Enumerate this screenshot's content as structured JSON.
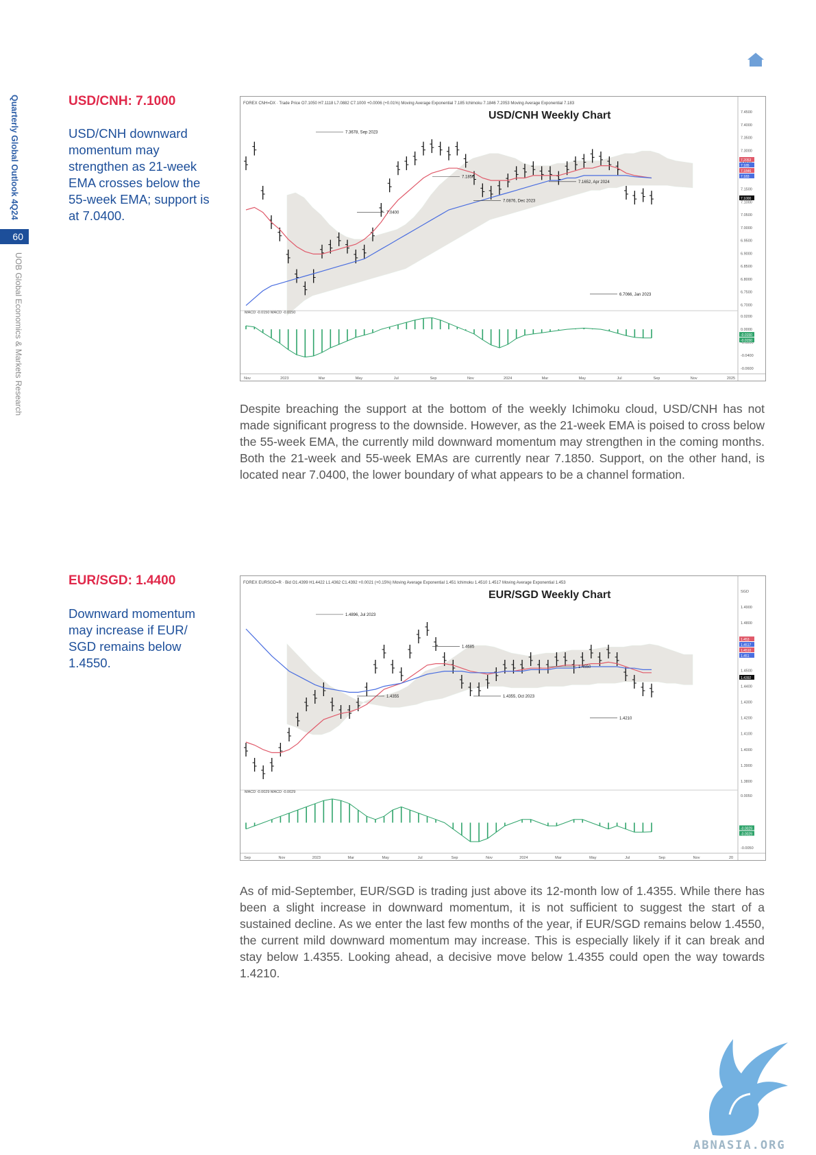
{
  "sidebar": {
    "report_title": "Quarterly Global Outlook 4Q24",
    "page_number": "60",
    "publisher": "UOB Global Economics & Markets Research"
  },
  "colors": {
    "brand_blue": "#1d4f9a",
    "title_red": "#e0284a",
    "ema21": "#e05a6a",
    "ema55": "#4a6ee0",
    "cloud_green": "#8fd1b0",
    "cloud_red": "#f2a8b0",
    "macd": "#2ea36a"
  },
  "icons": [
    "home-icon",
    "griffin-logo"
  ],
  "sections": [
    {
      "title": "USD/CNH: 7.1000",
      "summary": "USD/CNH downward momentum may strengthen as 21-week EMA crosses below the 55-week EMA; support is at 7.0400.",
      "body": "Despite breaching the support at the bottom of the weekly Ichimoku cloud, USD/CNH has not made significant progress to the downside. However, as the 21-week EMA is poised to cross below the 55-week EMA, the currently mild downward momentum may strengthen in the coming months. Both the 21-week and 55-week EMAs are currently near 7.1850. Support, on the other hand, is located near 7.0400, the lower boundary of what appears to be a channel formation."
    },
    {
      "title": "EUR/SGD: 1.4400",
      "summary": "Downward momentum may increase if EUR/ SGD remains below 1.4550.",
      "body": "As of mid-September, EUR/SGD is trading just above its 12-month low of 1.4355. While there has been a slight increase in downward momentum, it is not sufficient to suggest the start of a sustained decline. As we enter the last few months of the year, if EUR/SGD remains below 1.4550, the current mild downward momentum may increase. This is especially likely if it can break and stay below 1.4355. Looking ahead, a decisive move below 1.4355 could open the way towards 1.4210."
    }
  ],
  "chart_data": [
    {
      "type": "line",
      "title": "USD/CNH Weekly Chart",
      "header": "FOREX CNH=DX · Trade Price  O7.1050 H7.1118 L7.0882 C7.1000 +0.0006 (+0.01%)   Moving Average Exponential 7.185  Ichimoku 7.1846 7.2053  Moving Average Exponential 7.183",
      "ylim": [
        6.65,
        7.45
      ],
      "y_ticks": [
        "7.4500",
        "7.4000",
        "7.3500",
        "7.3000",
        "7.2500",
        "7.2000",
        "7.1500",
        "7.1000",
        "7.0500",
        "7.0000",
        "6.9500",
        "6.9000",
        "6.8500",
        "6.8000",
        "6.7500",
        "6.7000"
      ],
      "x_labels": [
        "Nov",
        "2023",
        "Mar",
        "May",
        "Jul",
        "Sep",
        "Nov",
        "2024",
        "Mar",
        "May",
        "Jul",
        "Sep",
        "Nov",
        "2025"
      ],
      "price_tags": [
        "7.2053",
        "7.185",
        "7.1846",
        "7.183",
        "7.1000"
      ],
      "series": [
        {
          "name": "Price",
          "values": [
            7.24,
            7.3,
            7.12,
            7.0,
            6.95,
            6.86,
            6.78,
            6.73,
            6.78,
            6.88,
            6.9,
            6.93,
            6.9,
            6.86,
            6.88,
            6.95,
            7.05,
            7.15,
            7.22,
            7.24,
            7.26,
            7.3,
            7.31,
            7.3,
            7.28,
            7.3,
            7.25,
            7.18,
            7.13,
            7.12,
            7.14,
            7.17,
            7.2,
            7.21,
            7.22,
            7.2,
            7.2,
            7.18,
            7.22,
            7.24,
            7.25,
            7.27,
            7.26,
            7.24,
            7.22,
            7.12,
            7.1,
            7.11,
            7.1
          ]
        },
        {
          "name": "EMA 21",
          "values": [
            7.05,
            7.06,
            7.04,
            7.0,
            6.97,
            6.93,
            6.9,
            6.88,
            6.87,
            6.87,
            6.88,
            6.89,
            6.9,
            6.91,
            6.93,
            6.96,
            7.0,
            7.05,
            7.09,
            7.12,
            7.15,
            7.18,
            7.2,
            7.21,
            7.22,
            7.22,
            7.21,
            7.2,
            7.18,
            7.17,
            7.17,
            7.17,
            7.18,
            7.18,
            7.19,
            7.19,
            7.19,
            7.19,
            7.2,
            7.21,
            7.22,
            7.22,
            7.23,
            7.23,
            7.22,
            7.2,
            7.19,
            7.185,
            7.18
          ]
        },
        {
          "name": "EMA 55",
          "values": [
            6.66,
            6.69,
            6.72,
            6.74,
            6.75,
            6.76,
            6.77,
            6.78,
            6.79,
            6.8,
            6.81,
            6.82,
            6.83,
            6.84,
            6.85,
            6.87,
            6.89,
            6.91,
            6.93,
            6.95,
            6.97,
            6.99,
            7.01,
            7.03,
            7.05,
            7.06,
            7.07,
            7.08,
            7.09,
            7.1,
            7.11,
            7.12,
            7.13,
            7.14,
            7.15,
            7.16,
            7.17,
            7.17,
            7.18,
            7.18,
            7.19,
            7.19,
            7.19,
            7.19,
            7.19,
            7.19,
            7.185,
            7.183,
            7.18
          ]
        }
      ],
      "annotations": [
        {
          "label": "7.3678, Sep 2023",
          "value": 7.3678
        },
        {
          "label": "7.1850",
          "value": 7.185
        },
        {
          "label": "7.1652, Apr 2024",
          "value": 7.1652
        },
        {
          "label": "7.0400",
          "value": 7.04
        },
        {
          "label": "7.0876, Dec 2023",
          "value": 7.0876
        },
        {
          "label": "6.7066, Jan 2023",
          "value": 6.7066
        }
      ],
      "macd": {
        "label": "MACD -0.0150  MACD -0.0150",
        "ylim": [
          -0.065,
          0.025
        ],
        "y_ticks": [
          "0.0200",
          "0.0000",
          "-0.0200",
          "-0.0400",
          "-0.0600"
        ],
        "tags": [
          "-0.0150",
          "-0.0150"
        ],
        "values": [
          0.006,
          0.004,
          -0.006,
          -0.015,
          -0.024,
          -0.035,
          -0.044,
          -0.048,
          -0.046,
          -0.04,
          -0.032,
          -0.026,
          -0.02,
          -0.014,
          -0.01,
          -0.006,
          0.0,
          0.004,
          0.008,
          0.012,
          0.016,
          0.019,
          0.02,
          0.016,
          0.01,
          0.004,
          -0.002,
          -0.008,
          -0.018,
          -0.027,
          -0.032,
          -0.026,
          -0.016,
          -0.01,
          -0.008,
          -0.006,
          -0.004,
          -0.002,
          0.0,
          0.001,
          0.002,
          0.001,
          0.0,
          -0.003,
          -0.007,
          -0.011,
          -0.014,
          -0.015,
          -0.015
        ]
      }
    },
    {
      "type": "line",
      "title": "EUR/SGD Weekly Chart",
      "header": "FOREX EURSGD=R · Bid  O1.4399 H1.4422 L1.4362 C1.4392 +0.0021 (+0.15%)   Moving Average Exponential 1.451  Ichimoku 1.4510 1.4517  Moving Average Exponential 1.453",
      "ylim": [
        1.375,
        1.505
      ],
      "y_ticks": [
        "SGD",
        "1.4900",
        "1.4800",
        "1.4700",
        "1.4600",
        "1.4500",
        "1.4400",
        "1.4300",
        "1.4200",
        "1.4100",
        "1.4000",
        "1.3900",
        "1.3800"
      ],
      "x_labels": [
        "Sep",
        "Nov",
        "2023",
        "Mar",
        "May",
        "Jul",
        "Sep",
        "Nov",
        "2024",
        "Mar",
        "May",
        "Jul",
        "Sep",
        "Nov",
        "20"
      ],
      "price_tags": [
        "1.453",
        "1.4517",
        "1.4510",
        "1.451",
        "1.4392"
      ],
      "series": [
        {
          "name": "Price",
          "values": [
            1.4,
            1.39,
            1.385,
            1.39,
            1.4,
            1.41,
            1.42,
            1.43,
            1.435,
            1.44,
            1.43,
            1.425,
            1.425,
            1.43,
            1.44,
            1.455,
            1.465,
            1.455,
            1.45,
            1.465,
            1.475,
            1.48,
            1.47,
            1.46,
            1.455,
            1.445,
            1.44,
            1.44,
            1.445,
            1.45,
            1.455,
            1.455,
            1.455,
            1.46,
            1.455,
            1.455,
            1.46,
            1.46,
            1.455,
            1.46,
            1.465,
            1.46,
            1.465,
            1.46,
            1.45,
            1.445,
            1.44,
            1.4392
          ]
        },
        {
          "name": "EMA 21",
          "values": [
            1.405,
            1.403,
            1.4,
            1.398,
            1.398,
            1.4,
            1.404,
            1.41,
            1.415,
            1.42,
            1.422,
            1.424,
            1.425,
            1.427,
            1.43,
            1.435,
            1.44,
            1.442,
            1.444,
            1.448,
            1.452,
            1.456,
            1.457,
            1.457,
            1.456,
            1.454,
            1.452,
            1.451,
            1.45,
            1.451,
            1.452,
            1.452,
            1.453,
            1.454,
            1.454,
            1.454,
            1.455,
            1.456,
            1.456,
            1.456,
            1.457,
            1.457,
            1.458,
            1.457,
            1.455,
            1.453,
            1.451,
            1.451
          ]
        },
        {
          "name": "EMA 55",
          "values": [
            1.48,
            1.474,
            1.468,
            1.462,
            1.457,
            1.452,
            1.449,
            1.446,
            1.443,
            1.441,
            1.44,
            1.439,
            1.438,
            1.438,
            1.439,
            1.44,
            1.442,
            1.443,
            1.444,
            1.446,
            1.448,
            1.45,
            1.451,
            1.452,
            1.452,
            1.452,
            1.451,
            1.451,
            1.451,
            1.451,
            1.452,
            1.452,
            1.452,
            1.453,
            1.453,
            1.453,
            1.454,
            1.454,
            1.454,
            1.455,
            1.455,
            1.455,
            1.455,
            1.455,
            1.454,
            1.454,
            1.453,
            1.453
          ]
        }
      ],
      "annotations": [
        {
          "label": "1.4896, Jul 2023",
          "value": 1.4896
        },
        {
          "label": "1.4685",
          "value": 1.4685
        },
        {
          "label": "1.4550",
          "value": 1.455
        },
        {
          "label": "1.4355",
          "value": 1.4355
        },
        {
          "label": "1.4355, Oct 2023",
          "value": 1.4355
        },
        {
          "label": "1.4210",
          "value": 1.421
        }
      ],
      "macd": {
        "label": "MACD -0.0029  MACD -0.0029",
        "ylim": [
          -0.0075,
          0.009
        ],
        "y_ticks": [
          "0.0050",
          "-0.0050"
        ],
        "tags": [
          "-0.0029",
          "-0.0029"
        ],
        "values": [
          -0.002,
          -0.001,
          0.0,
          0.001,
          0.002,
          0.003,
          0.004,
          0.005,
          0.006,
          0.007,
          0.0075,
          0.007,
          0.006,
          0.004,
          0.002,
          0.001,
          0.002,
          0.004,
          0.005,
          0.004,
          0.003,
          0.002,
          0.001,
          0.0,
          -0.002,
          -0.004,
          -0.006,
          -0.006,
          -0.005,
          -0.003,
          -0.001,
          0.0,
          0.001,
          0.001,
          0.0,
          -0.001,
          -0.001,
          0.0,
          0.001,
          0.001,
          0.0,
          -0.001,
          -0.002,
          -0.001,
          -0.002,
          -0.003,
          -0.003,
          -0.0029
        ]
      }
    }
  ]
}
